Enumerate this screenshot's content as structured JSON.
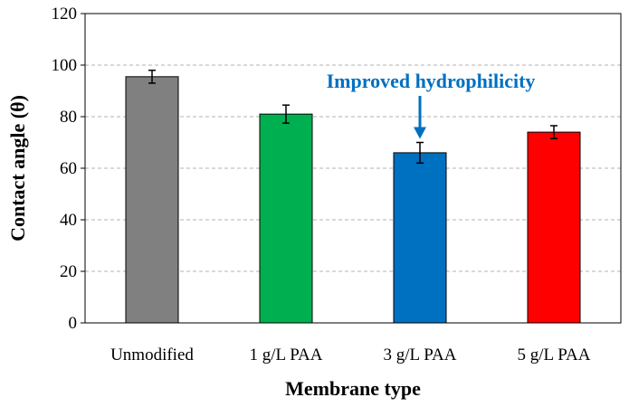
{
  "chart_data": {
    "type": "bar",
    "title": "",
    "xlabel": "Membrane type",
    "ylabel": "Contact angle (θ)",
    "ylim": [
      0,
      120
    ],
    "yticks": [
      0,
      20,
      40,
      60,
      80,
      100,
      120
    ],
    "grid": true,
    "categories": [
      "Unmodified",
      "1 g/L PAA",
      "3 g/L PAA",
      "5 g/L PAA"
    ],
    "values": [
      95.5,
      81,
      66,
      74
    ],
    "errors": [
      2.5,
      3.5,
      4,
      2.5
    ],
    "colors": [
      "#808080",
      "#00b050",
      "#0070c0",
      "#ff0000"
    ],
    "annotation": {
      "text": "Improved hydrophilicity",
      "target_category": "3 g/L PAA",
      "color": "#0070c0"
    }
  }
}
